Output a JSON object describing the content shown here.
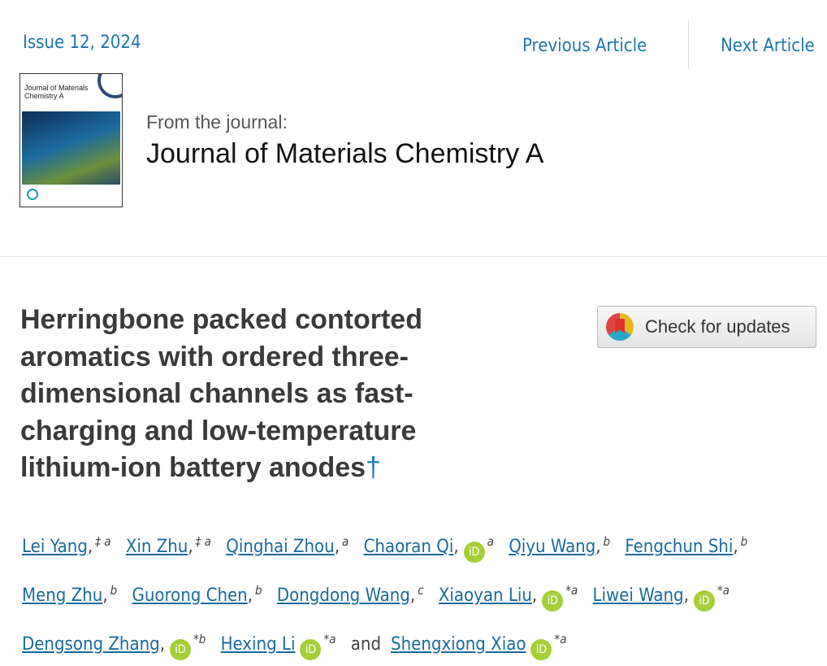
{
  "header": {
    "issue": "Issue 12, 2024",
    "previous_article": "Previous Article",
    "next_article": "Next Article"
  },
  "journal": {
    "from_label": "From the journal:",
    "name": "Journal of Materials Chemistry A",
    "cover_text": "Journal of Materials Chemistry A"
  },
  "article": {
    "title": "Herringbone packed contorted aromatics with ordered three-dimensional channels as fast-charging and low-temperature lithium-ion battery anodes",
    "title_mark": "†",
    "check_updates": "Check for updates"
  },
  "authors": [
    {
      "name": "Lei Yang",
      "sep": ",",
      "sup": "‡ a",
      "orcid": false
    },
    {
      "name": "Xin Zhu",
      "sep": ",",
      "sup": "‡ a",
      "orcid": false
    },
    {
      "name": "Qinghai Zhou",
      "sep": ",",
      "sup": "a",
      "orcid": false
    },
    {
      "name": "Chaoran Qi",
      "sep": ",",
      "sup": "a",
      "orcid": true
    },
    {
      "name": "Qiyu Wang",
      "sep": ",",
      "sup": "b",
      "orcid": false
    },
    {
      "name": "Fengchun Shi",
      "sep": ",",
      "sup": "b",
      "orcid": false
    },
    {
      "name": "Meng Zhu",
      "sep": ",",
      "sup": "b",
      "orcid": false
    },
    {
      "name": "Guorong Chen",
      "sep": ",",
      "sup": "b",
      "orcid": false
    },
    {
      "name": "Dongdong Wang",
      "sep": ",",
      "sup": "c",
      "orcid": false
    },
    {
      "name": "Xiaoyan Liu",
      "sep": ",",
      "sup": "*a",
      "orcid": true
    },
    {
      "name": "Liwei Wang",
      "sep": ",",
      "sup": "*a",
      "orcid": true
    },
    {
      "name": "Dengsong Zhang",
      "sep": ",",
      "sup": "*b",
      "orcid": true
    },
    {
      "name": "Hexing Li",
      "sep": "",
      "sup": "*a",
      "orcid": true
    },
    {
      "name": "Shengxiong Xiao",
      "sep": "",
      "sup": "*a",
      "orcid": true
    }
  ],
  "and_label": "and",
  "orcid_label": "iD",
  "colors": {
    "link": "#1a6a9a",
    "orcid": "#a6ce39",
    "title": "#3a3a3a"
  }
}
